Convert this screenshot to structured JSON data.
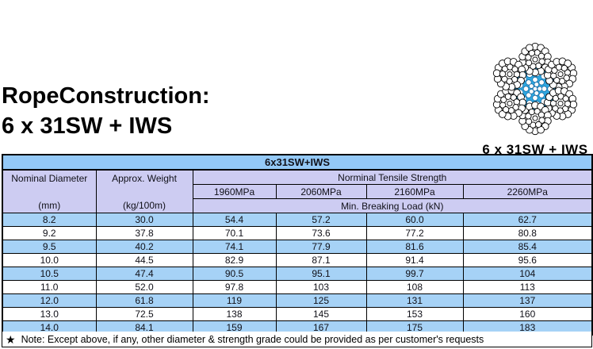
{
  "page": {
    "title_line1": "RopeConstruction:",
    "title_line2": "6 x 31SW + IWS"
  },
  "figure": {
    "label": "6 x 31SW + IWS",
    "core_color": "#2FA9E1"
  },
  "table": {
    "title": "6x31SW+IWS",
    "header": {
      "col1_title": "Nominal Diameter",
      "col1_unit": "(mm)",
      "col2_title": "Approx. Weight",
      "col2_unit": "(kg/100m)",
      "tensile_title": "Norminal Tensile Strength",
      "grades": [
        "1960MPa",
        "2060MPa",
        "2160MPa",
        "2260MPa"
      ],
      "breaking_title": "Min. Breaking Load (kN)"
    },
    "rows": [
      [
        "8.2",
        "30.0",
        "54.4",
        "57.2",
        "60.0",
        "62.7"
      ],
      [
        "9.2",
        "37.8",
        "70.1",
        "73.6",
        "77.2",
        "80.8"
      ],
      [
        "9.5",
        "40.2",
        "74.1",
        "77.9",
        "81.6",
        "85.4"
      ],
      [
        "10.0",
        "44.5",
        "82.9",
        "87.1",
        "91.4",
        "95.6"
      ],
      [
        "10.5",
        "47.4",
        "90.5",
        "95.1",
        "99.7",
        "104"
      ],
      [
        "11.0",
        "52.0",
        "97.8",
        "103",
        "108",
        "113"
      ],
      [
        "12.0",
        "61.8",
        "119",
        "125",
        "131",
        "137"
      ],
      [
        "13.0",
        "72.5",
        "138",
        "145",
        "153",
        "160"
      ],
      [
        "14.0",
        "84.1",
        "159",
        "167",
        "175",
        "183"
      ]
    ]
  },
  "note": {
    "star": "★",
    "text": "Note: Except above, if any, other diameter & strength grade could be provided as per customer's requests"
  },
  "colors": {
    "table_title_bg": "#94C9F7",
    "header_bg": "#CDCCF2",
    "row_alt_bg": "#A6D2F6",
    "row_bg": "#FFFFFF"
  }
}
